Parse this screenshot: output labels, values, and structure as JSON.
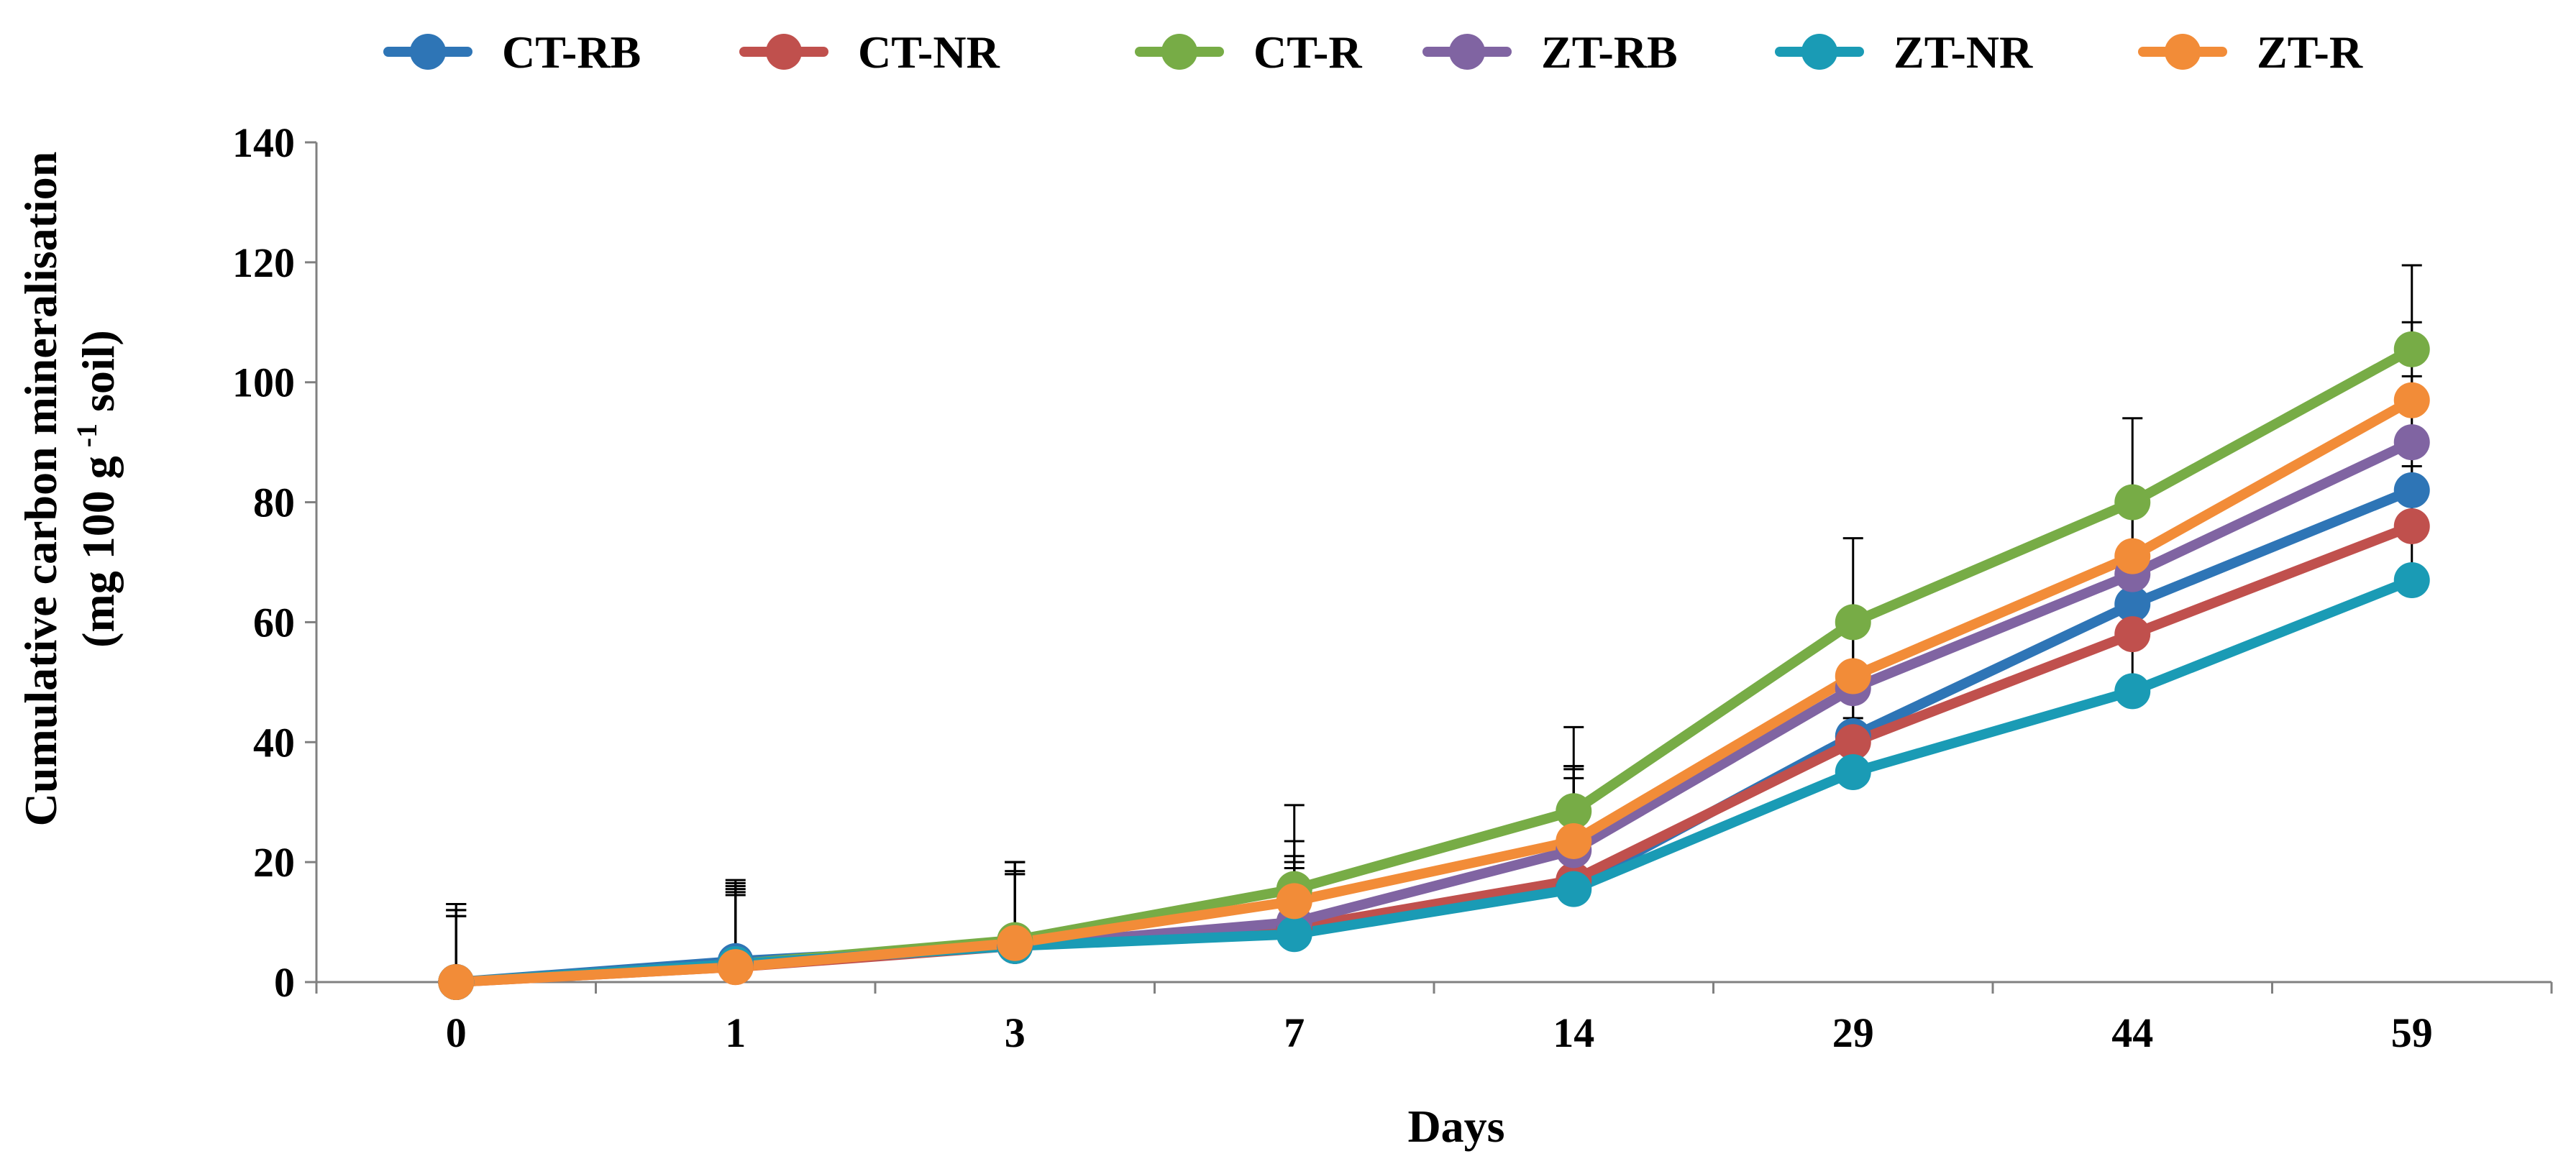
{
  "chart_data": {
    "type": "line",
    "title": "",
    "xlabel": "Days",
    "ylabel": "Cumulative carbon mineralisation",
    "ylabel_line2_prefix": "(mg 100 g",
    "ylabel_line2_sup": "-1",
    "ylabel_line2_suffix": " soil)",
    "categories": [
      "0",
      "1",
      "3",
      "7",
      "14",
      "29",
      "44",
      "59"
    ],
    "ylim": [
      0,
      140
    ],
    "yticks": [
      "0",
      "20",
      "40",
      "60",
      "80",
      "100",
      "120",
      "140"
    ],
    "grid": false,
    "legend_position": "top",
    "series": [
      {
        "name": "CT-RB",
        "color": "#2E75B6",
        "values": [
          0,
          3.5,
          6,
          9,
          16,
          41,
          63,
          82
        ],
        "errors": [
          12,
          12,
          14,
          10,
          20,
          10,
          10,
          10
        ]
      },
      {
        "name": "CT-NR",
        "color": "#C0504D",
        "values": [
          0,
          2.5,
          6,
          9,
          17,
          40,
          58,
          76
        ],
        "errors": [
          11,
          14,
          14,
          11,
          19,
          10,
          9,
          10
        ]
      },
      {
        "name": "CT-R",
        "color": "#77AC46",
        "values": [
          0,
          3,
          7,
          15.5,
          28.5,
          60,
          80,
          105.5
        ],
        "errors": [
          13,
          14,
          13,
          14,
          14,
          14,
          14,
          14
        ]
      },
      {
        "name": "ZT-RB",
        "color": "#8064A2",
        "values": [
          0,
          3,
          6,
          10,
          22,
          49,
          68,
          90
        ],
        "errors": [
          12,
          13,
          12,
          11,
          12,
          10,
          10,
          11
        ]
      },
      {
        "name": "ZT-NR",
        "color": "#1A9BB5",
        "values": [
          0,
          3,
          6,
          8,
          15.5,
          35,
          48.5,
          67
        ],
        "errors": [
          11,
          12,
          12,
          9,
          11,
          9,
          9,
          9
        ]
      },
      {
        "name": "ZT-R",
        "color": "#F28C38",
        "values": [
          0,
          2.5,
          6.5,
          13.5,
          23.5,
          51,
          71,
          97
        ],
        "errors": [
          13,
          12,
          12,
          10,
          12,
          10,
          10,
          13
        ]
      }
    ]
  }
}
